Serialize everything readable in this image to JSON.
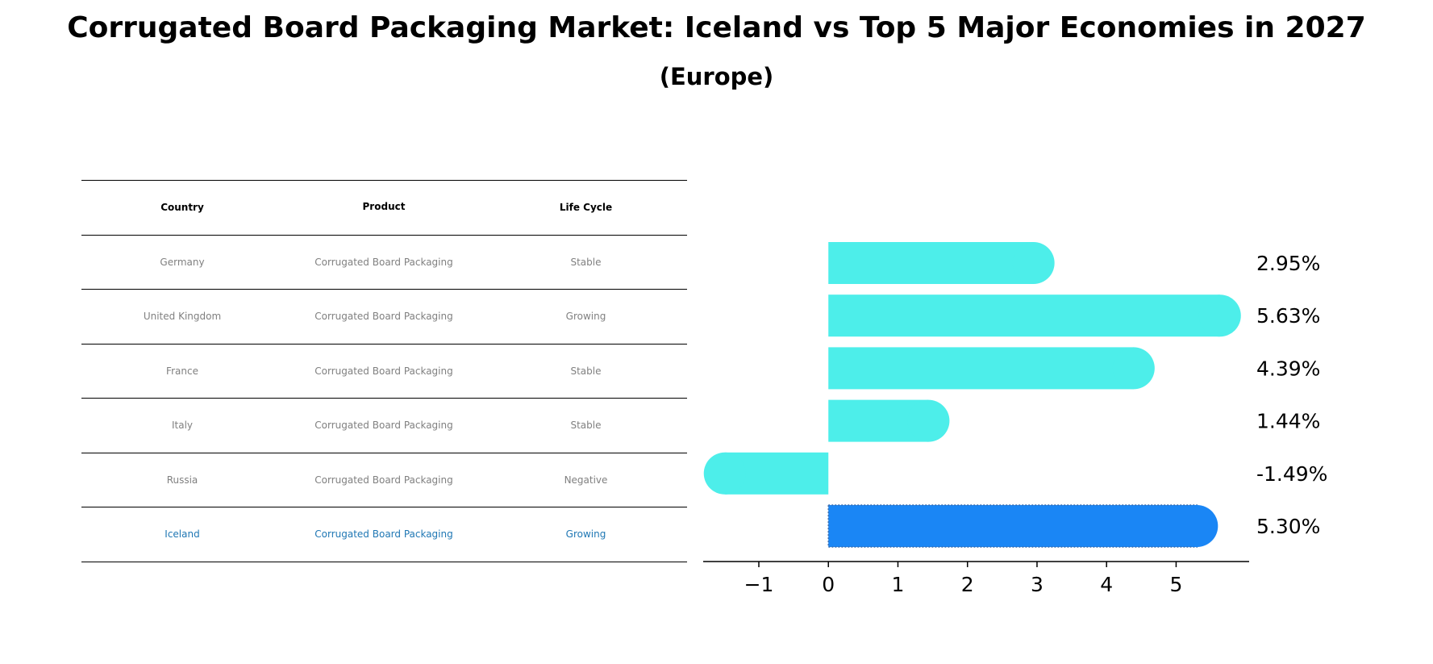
{
  "title": "Corrugated Board Packaging Market: Iceland vs Top 5 Major Economies in 2027",
  "subtitle": "(Europe)",
  "table": {
    "headers": [
      "Country",
      "Product",
      "Life Cycle"
    ],
    "rows": [
      {
        "country": "Germany",
        "product": "Corrugated Board Packaging",
        "life_cycle": "Stable"
      },
      {
        "country": "United Kingdom",
        "product": "Corrugated Board Packaging",
        "life_cycle": "Growing"
      },
      {
        "country": "France",
        "product": "Corrugated Board Packaging",
        "life_cycle": "Stable"
      },
      {
        "country": "Italy",
        "product": "Corrugated Board Packaging",
        "life_cycle": "Stable"
      },
      {
        "country": "Russia",
        "product": "Corrugated Board Packaging",
        "life_cycle": "Negative"
      },
      {
        "country": "Iceland",
        "product": "Corrugated Board Packaging",
        "life_cycle": "Growing"
      }
    ]
  },
  "chart_data": {
    "type": "bar",
    "orientation": "horizontal",
    "categories": [
      "Germany",
      "United Kingdom",
      "France",
      "Italy",
      "Russia",
      "Iceland"
    ],
    "values": [
      2.95,
      5.63,
      4.39,
      1.44,
      -1.49,
      5.3
    ],
    "value_labels": [
      "2.95%",
      "5.63%",
      "4.39%",
      "1.44%",
      "-1.49%",
      "5.30%"
    ],
    "highlight": "Iceland",
    "xlim": [
      -1.8,
      6.05
    ],
    "xticks": [
      -1,
      0,
      1,
      2,
      3,
      4,
      5
    ],
    "xtick_labels": [
      "−1",
      "0",
      "1",
      "2",
      "3",
      "4",
      "5"
    ],
    "grid": false,
    "colors": {
      "bar": "#4deeea",
      "highlight": "#1a86f5",
      "highlight_text": "#1f77b4",
      "muted_text": "#808080"
    }
  }
}
